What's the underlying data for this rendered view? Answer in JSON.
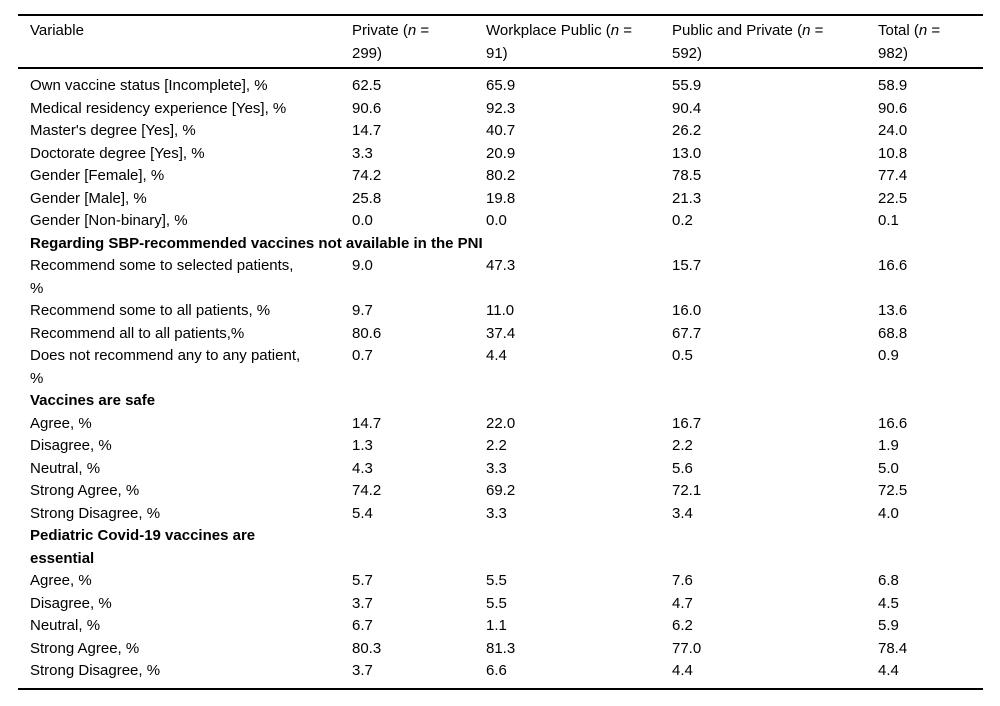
{
  "style": {
    "background": "#ffffff",
    "text_color": "#000000",
    "rule_color": "#000000"
  },
  "table": {
    "columns": [
      {
        "prefix": "Variable",
        "italic": "",
        "suffix": ""
      },
      {
        "prefix": "Private (",
        "italic": "n",
        "suffix": " = 299)"
      },
      {
        "prefix": "Workplace Public (",
        "italic": "n",
        "suffix": " = 91)"
      },
      {
        "prefix": "Public and Private (",
        "italic": "n",
        "suffix": " = 592)"
      },
      {
        "prefix": "Total (",
        "italic": "n",
        "suffix": " = 982)"
      }
    ],
    "rows": [
      {
        "type": "data",
        "label": "Own vaccine status [Incomplete], %",
        "values": [
          "62.5",
          "65.9",
          "55.9",
          "58.9"
        ]
      },
      {
        "type": "data",
        "label": "Medical residency experience [Yes], %",
        "values": [
          "90.6",
          "92.3",
          "90.4",
          "90.6"
        ]
      },
      {
        "type": "data",
        "label": "Master's degree [Yes], %",
        "values": [
          "14.7",
          "40.7",
          "26.2",
          "24.0"
        ]
      },
      {
        "type": "data",
        "label": "Doctorate degree [Yes], %",
        "values": [
          "3.3",
          "20.9",
          "13.0",
          "10.8"
        ]
      },
      {
        "type": "data",
        "label": "Gender [Female], %",
        "values": [
          "74.2",
          "80.2",
          "78.5",
          "77.4"
        ]
      },
      {
        "type": "data",
        "label": "Gender [Male], %",
        "values": [
          "25.8",
          "19.8",
          "21.3",
          "22.5"
        ]
      },
      {
        "type": "data",
        "label": "Gender [Non-binary], %",
        "values": [
          "0.0",
          "0.0",
          "0.2",
          "0.1"
        ]
      },
      {
        "type": "section",
        "label": "Regarding SBP-recommended vaccines not available in the PNI",
        "spans_all_columns": true
      },
      {
        "type": "data",
        "label": "Recommend some to selected patients, %",
        "values": [
          "9.0",
          "47.3",
          "15.7",
          "16.6"
        ]
      },
      {
        "type": "data",
        "label": "Recommend some to all patients, %",
        "values": [
          "9.7",
          "11.0",
          "16.0",
          "13.6"
        ]
      },
      {
        "type": "data",
        "label": "Recommend all to all patients,%",
        "values": [
          "80.6",
          "37.4",
          "67.7",
          "68.8"
        ]
      },
      {
        "type": "data",
        "label": "Does not recommend any to any patient, %",
        "values": [
          "0.7",
          "4.4",
          "0.5",
          "0.9"
        ]
      },
      {
        "type": "section",
        "label": "Vaccines are safe",
        "spans_all_columns": true
      },
      {
        "type": "data",
        "label": "Agree, %",
        "values": [
          "14.7",
          "22.0",
          "16.7",
          "16.6"
        ]
      },
      {
        "type": "data",
        "label": "Disagree, %",
        "values": [
          "1.3",
          "2.2",
          "2.2",
          "1.9"
        ]
      },
      {
        "type": "data",
        "label": "Neutral, %",
        "values": [
          "4.3",
          "3.3",
          "5.6",
          "5.0"
        ]
      },
      {
        "type": "data",
        "label": "Strong Agree, %",
        "values": [
          "74.2",
          "69.2",
          "72.1",
          "72.5"
        ]
      },
      {
        "type": "data",
        "label": "Strong Disagree, %",
        "values": [
          "5.4",
          "3.3",
          "3.4",
          "4.0"
        ]
      },
      {
        "type": "section",
        "label": "Pediatric Covid-19 vaccines are essential",
        "spans_all_columns": false
      },
      {
        "type": "data",
        "label": "Agree, %",
        "values": [
          "5.7",
          "5.5",
          "7.6",
          "6.8"
        ]
      },
      {
        "type": "data",
        "label": "Disagree, %",
        "values": [
          "3.7",
          "5.5",
          "4.7",
          "4.5"
        ]
      },
      {
        "type": "data",
        "label": "Neutral, %",
        "values": [
          "6.7",
          "1.1",
          "6.2",
          "5.9"
        ]
      },
      {
        "type": "data",
        "label": "Strong Agree, %",
        "values": [
          "80.3",
          "81.3",
          "77.0",
          "78.4"
        ]
      },
      {
        "type": "data",
        "label": "Strong Disagree, %",
        "values": [
          "3.7",
          "6.6",
          "4.4",
          "4.4"
        ]
      }
    ]
  }
}
